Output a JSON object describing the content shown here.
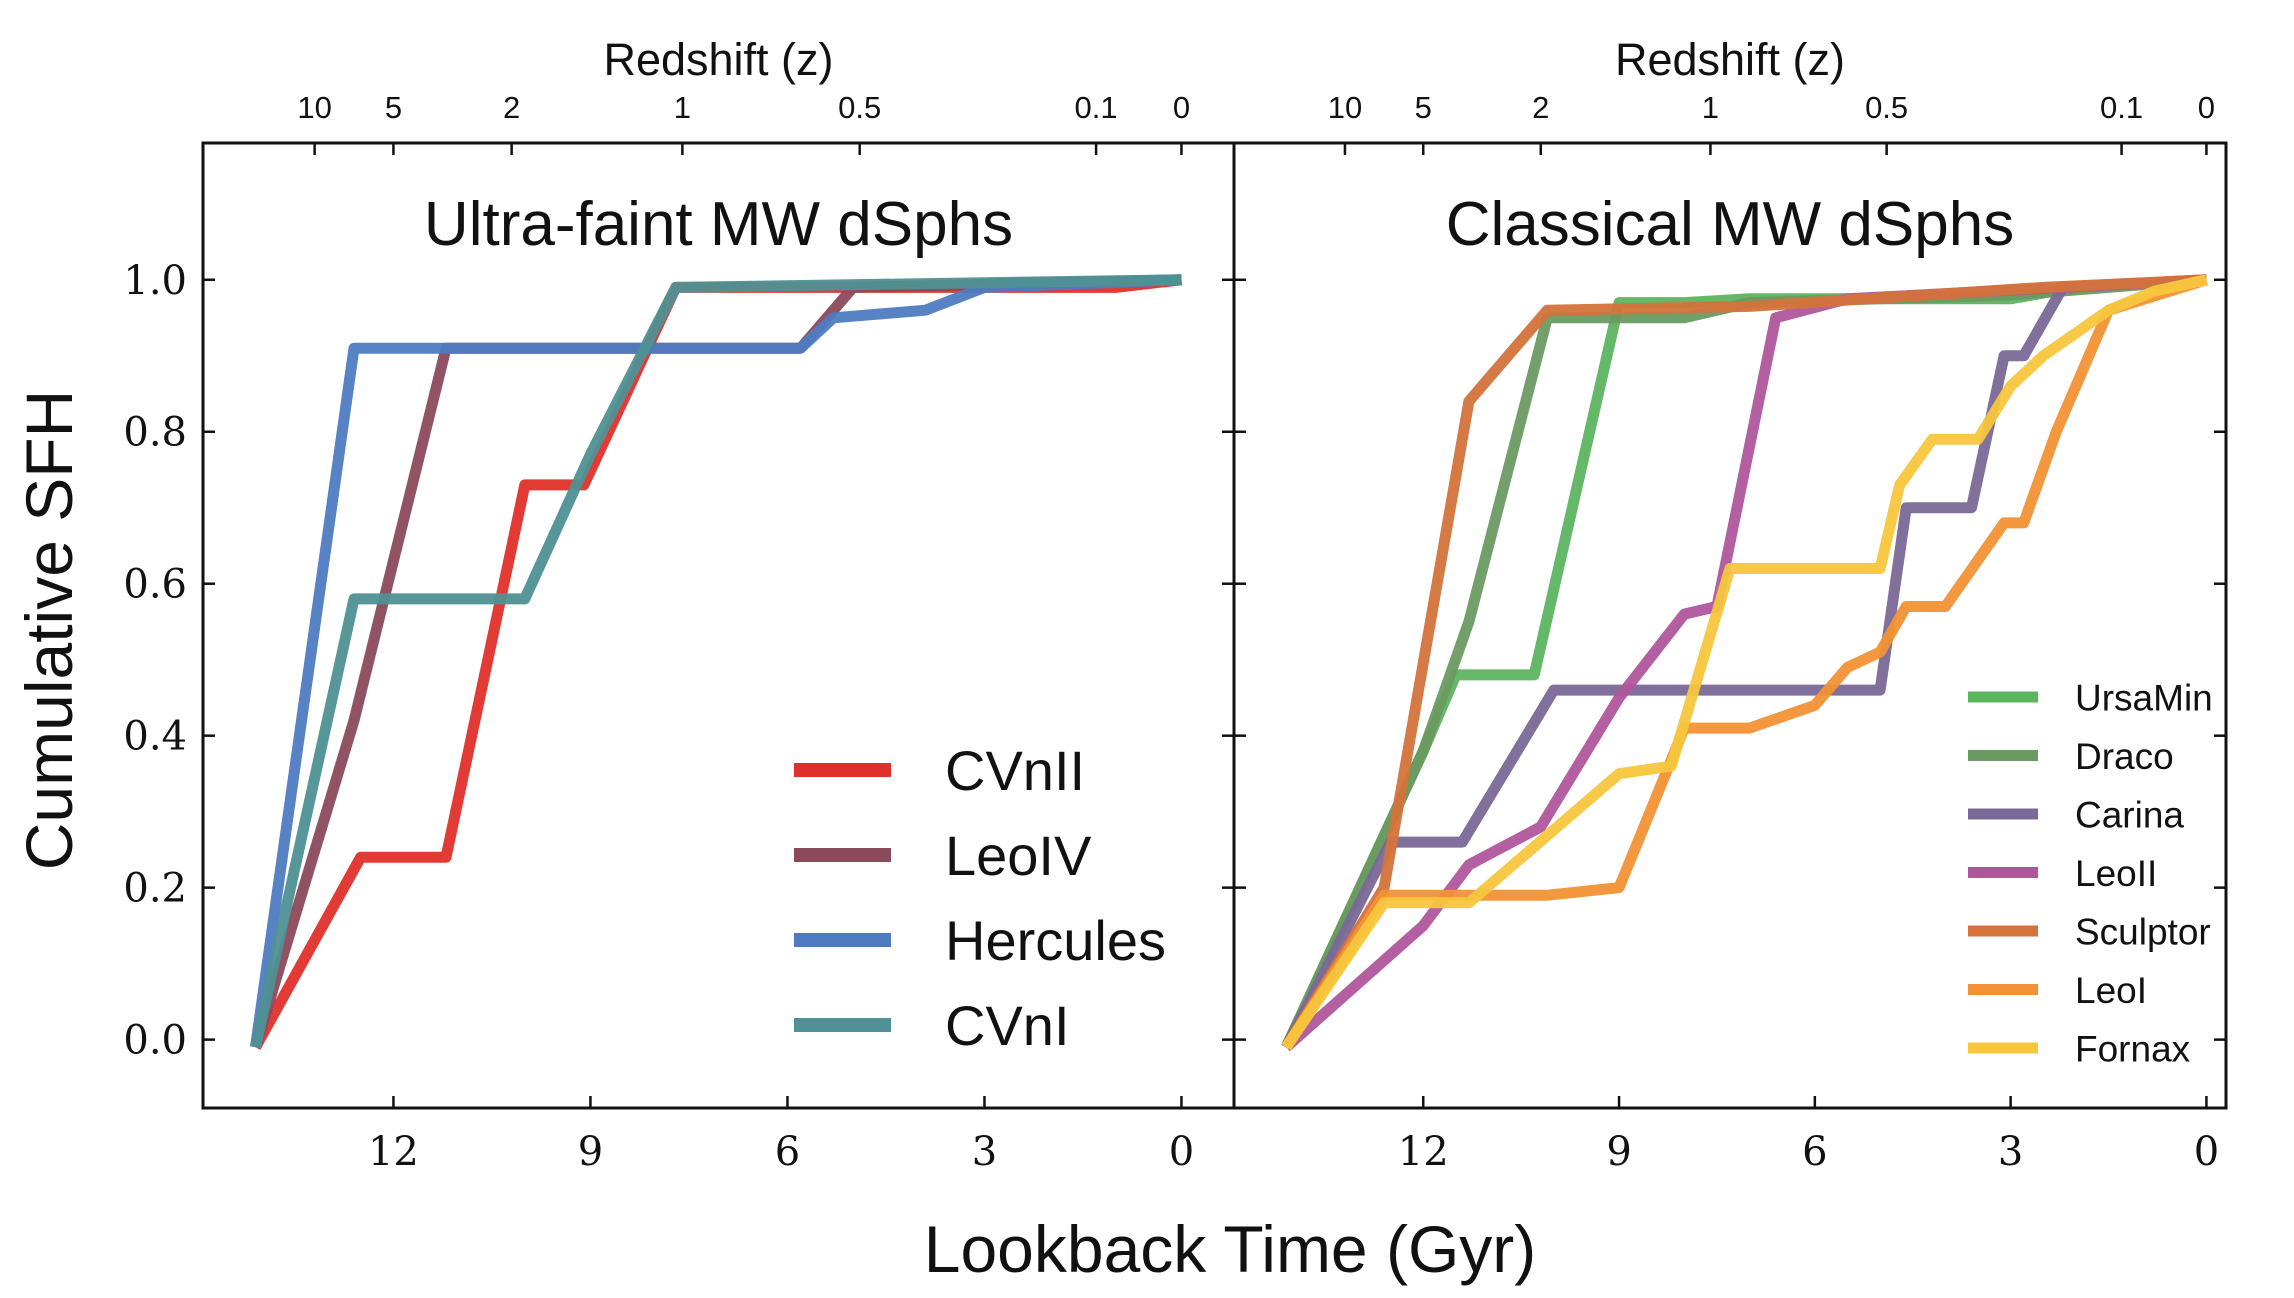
{
  "figure": {
    "ylabel": "Cumulative SFH",
    "xlabel": "Lookback Time (Gyr)"
  },
  "chart_data": [
    {
      "type": "line",
      "title": "Ultra-faint MW dSphs",
      "xlabel": "Lookback Time (Gyr)",
      "ylabel": "Cumulative SFH",
      "top_axis_label": "Redshift (z)",
      "top_ticks": [
        {
          "label": "10",
          "x": 13.2
        },
        {
          "label": "5",
          "x": 12.0
        },
        {
          "label": "2",
          "x": 10.2
        },
        {
          "label": "1",
          "x": 7.6
        },
        {
          "label": "0.5",
          "x": 4.9
        },
        {
          "label": "0.1",
          "x": 1.3
        },
        {
          "label": "0",
          "x": 0.0
        }
      ],
      "xlim": [
        14.9,
        -0.8
      ],
      "ylim": [
        -0.09,
        1.18
      ],
      "xticks": [
        12,
        9,
        6,
        3,
        0
      ],
      "yticks": [
        0.0,
        0.2,
        0.4,
        0.6,
        0.8,
        1.0
      ],
      "xaxis_inverted": true,
      "legend_position": "lower-right",
      "series": [
        {
          "name": "CVnII",
          "color": "#e0302b",
          "x": [
            14.1,
            12.5,
            11.2,
            10.0,
            9.1,
            7.7,
            1.0,
            0.0
          ],
          "y": [
            -0.01,
            0.24,
            0.24,
            0.73,
            0.73,
            0.99,
            0.99,
            1.0
          ]
        },
        {
          "name": "LeoIV",
          "color": "#8b4a5c",
          "x": [
            14.1,
            12.6,
            11.2,
            5.8,
            5.0,
            0.0
          ],
          "y": [
            -0.01,
            0.42,
            0.91,
            0.91,
            0.99,
            1.0
          ]
        },
        {
          "name": "Hercules",
          "color": "#4e7bc0",
          "x": [
            14.1,
            12.6,
            5.8,
            5.3,
            3.9,
            3.0,
            0.0
          ],
          "y": [
            -0.01,
            0.91,
            0.91,
            0.95,
            0.96,
            0.99,
            1.0
          ]
        },
        {
          "name": "CVnI",
          "color": "#4f9194",
          "x": [
            14.1,
            12.6,
            10.0,
            9.0,
            7.7,
            0.0
          ],
          "y": [
            -0.01,
            0.58,
            0.58,
            0.77,
            0.99,
            1.0
          ]
        }
      ]
    },
    {
      "type": "line",
      "title": "Classical MW dSphs",
      "xlabel": "Lookback Time (Gyr)",
      "ylabel": "",
      "top_axis_label": "Redshift (z)",
      "top_ticks": [
        {
          "label": "10",
          "x": 13.2
        },
        {
          "label": "5",
          "x": 12.0
        },
        {
          "label": "2",
          "x": 10.2
        },
        {
          "label": "1",
          "x": 7.6
        },
        {
          "label": "0.5",
          "x": 4.9
        },
        {
          "label": "0.1",
          "x": 1.3
        },
        {
          "label": "0",
          "x": 0.0
        }
      ],
      "xlim": [
        14.9,
        -0.3
      ],
      "ylim": [
        -0.09,
        1.18
      ],
      "xticks": [
        12,
        9,
        6,
        3,
        0
      ],
      "yticks": [
        0.0,
        0.2,
        0.4,
        0.6,
        0.8,
        1.0
      ],
      "xaxis_inverted": true,
      "legend_position": "lower-right",
      "series": [
        {
          "name": "UrsaMin",
          "color": "#5cb45f",
          "x": [
            14.1,
            12.0,
            11.5,
            10.3,
            9.0,
            8.0,
            7.0,
            3.0,
            2.0,
            0.0
          ],
          "y": [
            -0.01,
            0.38,
            0.48,
            0.48,
            0.97,
            0.97,
            0.975,
            0.975,
            0.99,
            1.0
          ]
        },
        {
          "name": "Draco",
          "color": "#6a9a62",
          "x": [
            14.1,
            12.0,
            11.3,
            10.1,
            8.0,
            7.0,
            3.0,
            0.0
          ],
          "y": [
            -0.01,
            0.38,
            0.55,
            0.95,
            0.95,
            0.97,
            0.98,
            1.0
          ]
        },
        {
          "name": "Carina",
          "color": "#7a6896",
          "x": [
            14.1,
            12.5,
            11.4,
            10.0,
            5.0,
            4.6,
            3.6,
            3.1,
            2.8,
            2.2,
            0.0
          ],
          "y": [
            -0.01,
            0.26,
            0.26,
            0.46,
            0.46,
            0.7,
            0.7,
            0.9,
            0.9,
            0.99,
            1.0
          ]
        },
        {
          "name": "LeoII",
          "color": "#b0569c",
          "x": [
            14.1,
            12.0,
            11.3,
            10.2,
            9.0,
            8.0,
            7.5,
            6.6,
            5.5,
            0.0
          ],
          "y": [
            -0.01,
            0.15,
            0.23,
            0.28,
            0.45,
            0.56,
            0.57,
            0.95,
            0.975,
            1.0
          ]
        },
        {
          "name": "Sculptor",
          "color": "#d4733b",
          "x": [
            14.1,
            12.6,
            11.3,
            10.1,
            7.0,
            2.5,
            0.0
          ],
          "y": [
            -0.01,
            0.2,
            0.84,
            0.96,
            0.965,
            0.99,
            1.0
          ]
        },
        {
          "name": "LeoI",
          "color": "#f29234",
          "x": [
            14.1,
            12.6,
            10.1,
            9.0,
            8.0,
            7.0,
            6.0,
            5.5,
            5.0,
            4.6,
            4.0,
            3.1,
            2.8,
            2.3,
            1.5,
            0.0
          ],
          "y": [
            -0.01,
            0.19,
            0.19,
            0.2,
            0.41,
            0.41,
            0.44,
            0.49,
            0.51,
            0.57,
            0.57,
            0.68,
            0.68,
            0.8,
            0.96,
            1.0
          ]
        },
        {
          "name": "Fornax",
          "color": "#f7c63d",
          "x": [
            14.1,
            12.6,
            11.3,
            9.0,
            8.2,
            7.3,
            5.0,
            4.7,
            4.2,
            3.5,
            3.0,
            2.5,
            1.5,
            0.8,
            0.0
          ],
          "y": [
            -0.01,
            0.18,
            0.18,
            0.35,
            0.36,
            0.62,
            0.62,
            0.73,
            0.79,
            0.79,
            0.86,
            0.9,
            0.96,
            0.985,
            1.0
          ]
        }
      ]
    }
  ]
}
